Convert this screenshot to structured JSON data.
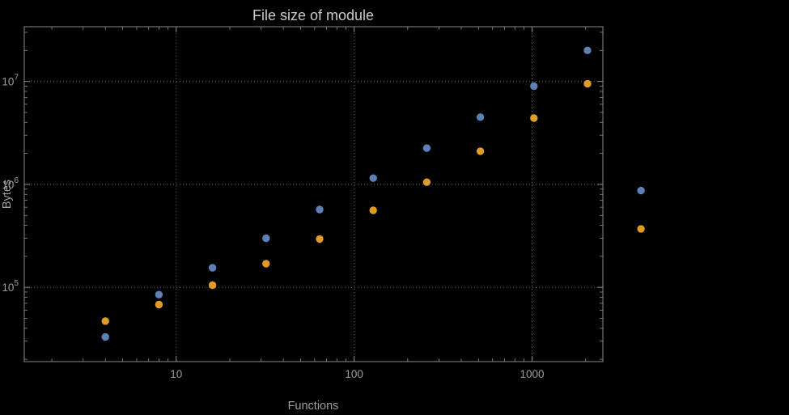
{
  "chart_data": {
    "type": "scatter",
    "title": "File size of module",
    "xlabel": "Functions",
    "ylabel": "Bytes",
    "x_scale": "log",
    "y_scale": "log",
    "xlim": [
      1.4,
      2500
    ],
    "ylim": [
      19000,
      34000000
    ],
    "grid": "dotted major gridlines at decades",
    "legend": "none",
    "plot_range_clipping": false,
    "x": [
      4,
      8,
      16,
      32,
      64,
      128,
      256,
      512,
      1024,
      2048,
      4096
    ],
    "series": [
      {
        "name": "series-1-blue",
        "color": "#5e81b5",
        "values": [
          33000,
          85000,
          155000,
          300000,
          570000,
          1150000,
          2250000,
          4500000,
          9000000,
          20000000,
          870000
        ]
      },
      {
        "name": "series-2-orange",
        "color": "#e09c24",
        "values": [
          47000,
          68000,
          105000,
          170000,
          295000,
          560000,
          1050000,
          2100000,
          4400000,
          9500000,
          370000
        ]
      }
    ],
    "x_ticks": [
      {
        "label": "10",
        "value": 10
      },
      {
        "label": "100",
        "value": 100
      },
      {
        "label": "1000",
        "value": 1000
      }
    ],
    "y_ticks": [
      {
        "base": "10",
        "exp": "5",
        "value": 100000
      },
      {
        "base": "10",
        "exp": "6",
        "value": 1000000
      },
      {
        "base": "10",
        "exp": "7",
        "value": 10000000
      }
    ]
  },
  "colors": {
    "background": "#000000",
    "frame": "#8a8a8a",
    "grid": "#686868",
    "text": "#9e9e9e",
    "title": "#c9c9c9"
  }
}
